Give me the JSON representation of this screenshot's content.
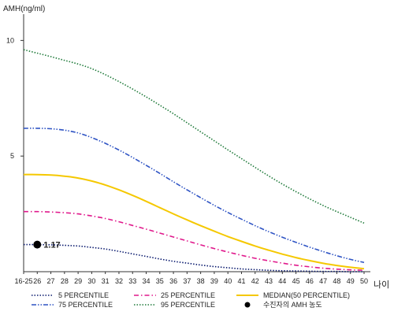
{
  "chart_data": {
    "type": "line",
    "ylabel": "AMH(ng/ml)",
    "xlabel": "나이",
    "ylim": [
      0,
      11
    ],
    "yticks": [
      {
        "value": 5,
        "label": "5"
      },
      {
        "value": 10,
        "label": "10"
      }
    ],
    "categories": [
      "16-25",
      "26",
      "27",
      "28",
      "29",
      "30",
      "31",
      "32",
      "33",
      "34",
      "35",
      "36",
      "37",
      "38",
      "39",
      "40",
      "41",
      "42",
      "43",
      "44",
      "45",
      "46",
      "47",
      "48",
      "49",
      "50"
    ],
    "grid": false,
    "series": [
      {
        "name": "5 PERCENTILE",
        "color": "#0a1a6e",
        "dash": "dotted",
        "values": [
          1.17,
          1.17,
          1.16,
          1.14,
          1.11,
          1.05,
          0.98,
          0.88,
          0.77,
          0.66,
          0.55,
          0.45,
          0.37,
          0.29,
          0.22,
          0.17,
          0.12,
          0.09,
          0.06,
          0.04,
          0.03,
          0.02,
          0.01,
          0.01,
          0.0,
          0.0
        ]
      },
      {
        "name": "25 PERCENTILE",
        "color": "#e0198c",
        "dash": "dashdot",
        "values": [
          2.6,
          2.6,
          2.58,
          2.55,
          2.5,
          2.41,
          2.3,
          2.16,
          2.0,
          1.84,
          1.67,
          1.5,
          1.33,
          1.16,
          1.0,
          0.85,
          0.71,
          0.58,
          0.47,
          0.37,
          0.28,
          0.21,
          0.15,
          0.11,
          0.08,
          0.06
        ]
      },
      {
        "name": "MEDIAN(50 PERCENTILE)",
        "color": "#f5c800",
        "dash": "solid",
        "values": [
          4.2,
          4.2,
          4.18,
          4.13,
          4.05,
          3.92,
          3.75,
          3.54,
          3.3,
          3.04,
          2.77,
          2.5,
          2.24,
          1.99,
          1.75,
          1.52,
          1.31,
          1.11,
          0.93,
          0.76,
          0.61,
          0.48,
          0.36,
          0.27,
          0.19,
          0.13
        ]
      },
      {
        "name": "75 PERCENTILE",
        "color": "#2f54c4",
        "dash": "dashdotdot",
        "values": [
          6.2,
          6.2,
          6.18,
          6.12,
          6.0,
          5.8,
          5.55,
          5.26,
          4.94,
          4.6,
          4.25,
          3.89,
          3.54,
          3.2,
          2.87,
          2.56,
          2.27,
          1.99,
          1.73,
          1.49,
          1.27,
          1.06,
          0.87,
          0.69,
          0.53,
          0.4
        ]
      },
      {
        "name": "95 PERCENTILE",
        "color": "#1f7a3a",
        "dash": "dotted",
        "values": [
          9.6,
          9.45,
          9.3,
          9.14,
          8.98,
          8.78,
          8.52,
          8.22,
          7.9,
          7.56,
          7.2,
          6.83,
          6.44,
          6.05,
          5.66,
          5.27,
          4.89,
          4.51,
          4.14,
          3.79,
          3.46,
          3.15,
          2.86,
          2.6,
          2.35,
          2.1
        ]
      }
    ],
    "marker": {
      "x": "26",
      "y": 1.17,
      "label": "1.17",
      "legend": "수진자의 AMH 농도",
      "color": "#000000"
    },
    "legend_position": "bottom"
  }
}
